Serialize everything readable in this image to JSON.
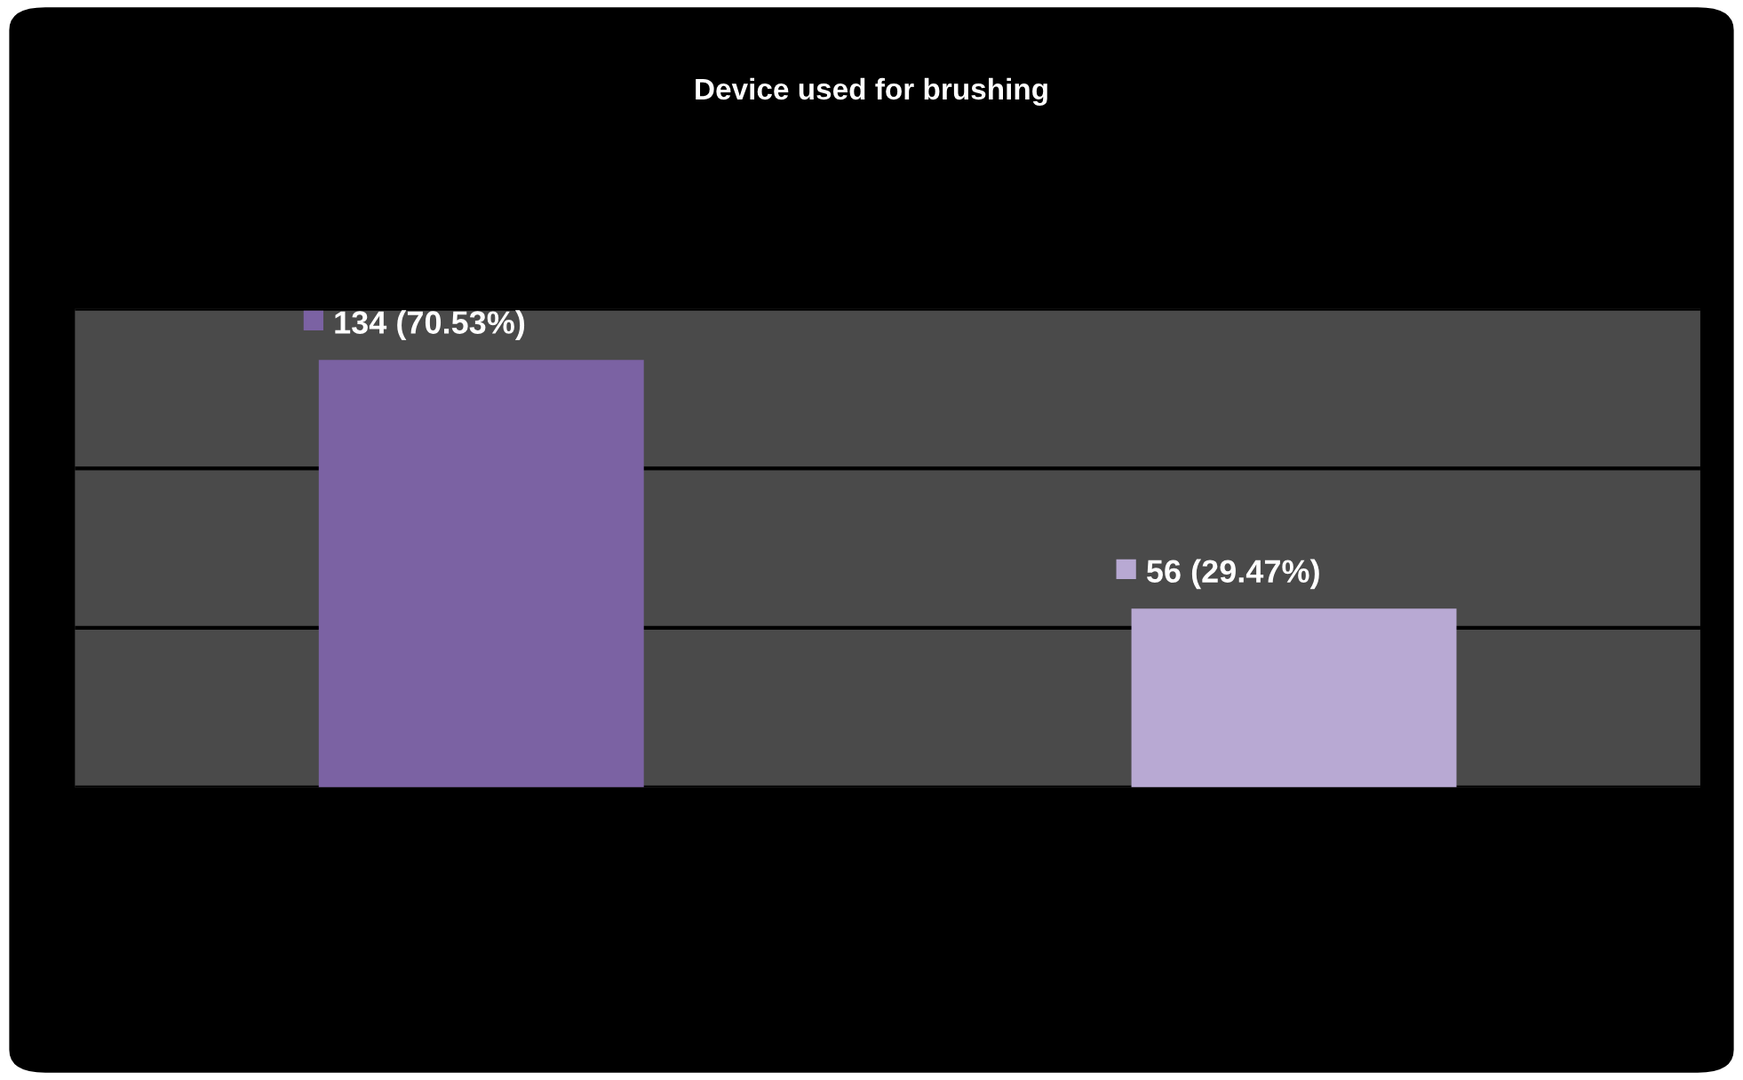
{
  "chart_data": {
    "type": "bar",
    "title": "Device used for brushing",
    "categories": [
      null,
      null
    ],
    "values": [
      134,
      56
    ],
    "colors": [
      "#7b62a3",
      "#b8a9d3"
    ],
    "value_labels": [
      "134 (70.53%)",
      "56 (29.47%)"
    ],
    "ylim": [
      0,
      150
    ],
    "yticks": [
      {
        "value": 0,
        "label": null
      },
      {
        "value": 50,
        "label": null
      },
      {
        "value": 100,
        "label": null
      },
      {
        "value": 150,
        "label": null
      }
    ],
    "grid": "y"
  }
}
